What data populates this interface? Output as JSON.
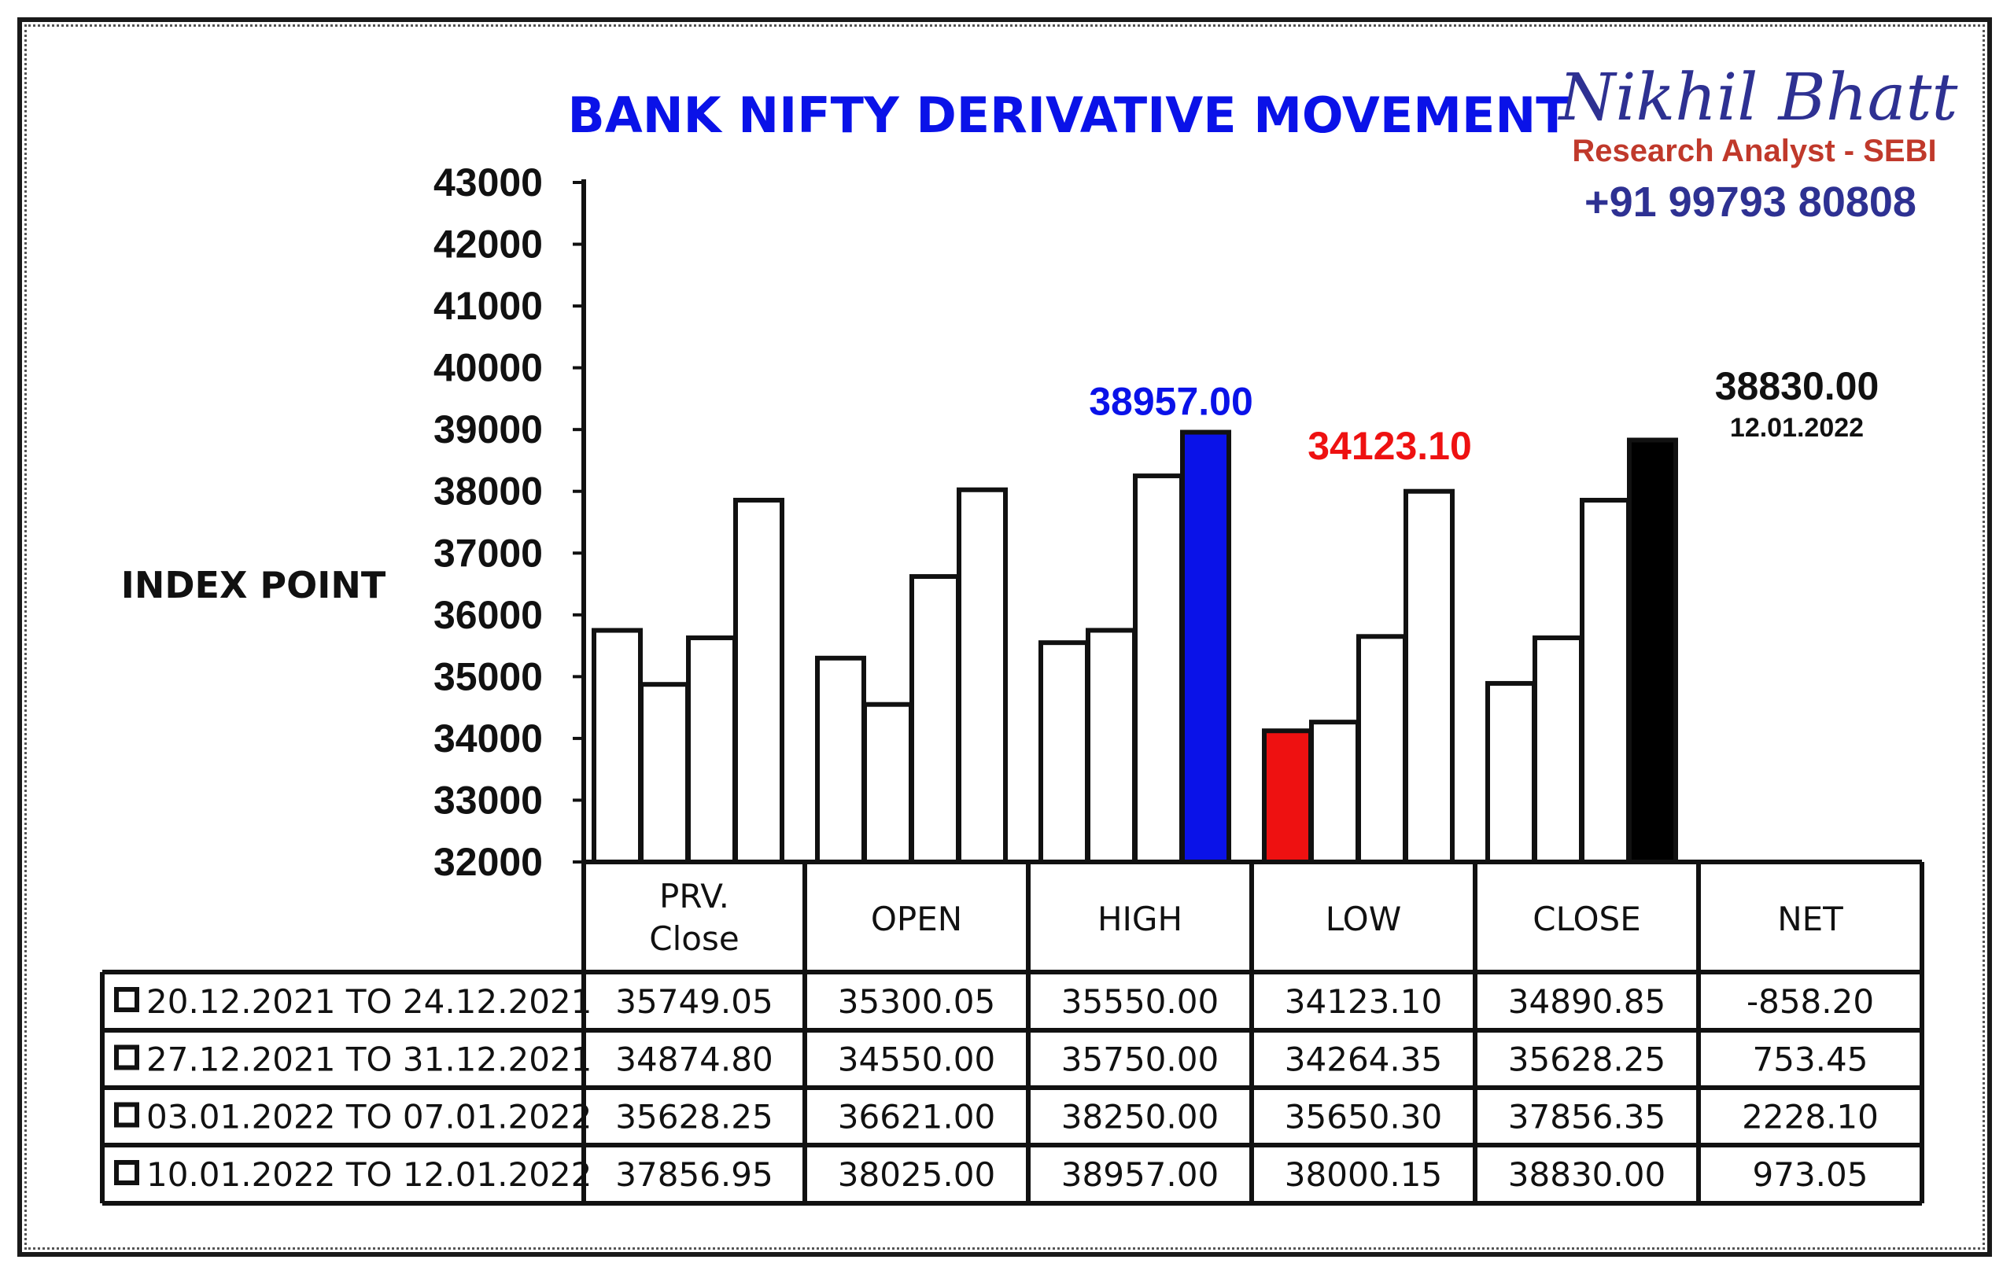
{
  "chart_data": {
    "type": "bar",
    "title": "BANK NIFTY DERIVATIVE MOVEMENT",
    "ylabel": "INDEX POINT",
    "ylim": [
      32000,
      43000
    ],
    "yticks": [
      "43000",
      "42000",
      "41000",
      "40000",
      "39000",
      "38000",
      "37000",
      "36000",
      "35000",
      "34000",
      "33000",
      "32000"
    ],
    "categories": [
      "PRV. Close",
      "OPEN",
      "HIGH",
      "LOW",
      "CLOSE"
    ],
    "table_columns": [
      "PRV.\nClose",
      "OPEN",
      "HIGH",
      "LOW",
      "CLOSE",
      "NET"
    ],
    "series": [
      {
        "name": "20.12.2021 TO 24.12.2021",
        "values": [
          35749.05,
          35300.05,
          35550.0,
          34123.1,
          34890.85
        ],
        "net": -858.2,
        "table": [
          "35749.05",
          "35300.05",
          "35550.00",
          "34123.10",
          "34890.85",
          "-858.20"
        ]
      },
      {
        "name": "27.12.2021 TO 31.12.2021",
        "values": [
          34874.8,
          34550.0,
          35750.0,
          34264.35,
          35628.25
        ],
        "net": 753.45,
        "table": [
          "34874.80",
          "34550.00",
          "35750.00",
          "34264.35",
          "35628.25",
          "753.45"
        ]
      },
      {
        "name": "03.01.2022 TO 07.01.2022",
        "values": [
          35628.25,
          36621.0,
          38250.0,
          35650.3,
          37856.35
        ],
        "net": 2228.1,
        "table": [
          "35628.25",
          "36621.00",
          "38250.00",
          "35650.30",
          "37856.35",
          "2228.10"
        ]
      },
      {
        "name": "10.01.2022 TO 12.01.2022",
        "values": [
          37856.95,
          38025.0,
          38957.0,
          38000.15,
          38830.0
        ],
        "net": 973.05,
        "table": [
          "37856.95",
          "38025.00",
          "38957.00",
          "38000.15",
          "38830.00",
          "973.05"
        ]
      }
    ],
    "highlight": {
      "high": {
        "category": 2,
        "series": 3,
        "color": "#0a12e8",
        "label": "38957.00"
      },
      "low": {
        "category": 3,
        "series": 0,
        "color": "#ee1111",
        "label": "34123.10"
      },
      "close": {
        "category": 4,
        "series": 3,
        "color": "#000000",
        "label": "38830.00",
        "date": "12.01.2022"
      }
    },
    "bar_fill": "#ffffff",
    "legend": "table-bottom",
    "grid": false
  },
  "brand": {
    "name": "Nikhil Bhatt",
    "subtitle": "Research Analyst - SEBI",
    "phone": "+91 99793 80808"
  },
  "colors": {
    "title": "#0a12e8",
    "brand_name": "#2e3192",
    "brand_subtitle": "#c0392b"
  }
}
